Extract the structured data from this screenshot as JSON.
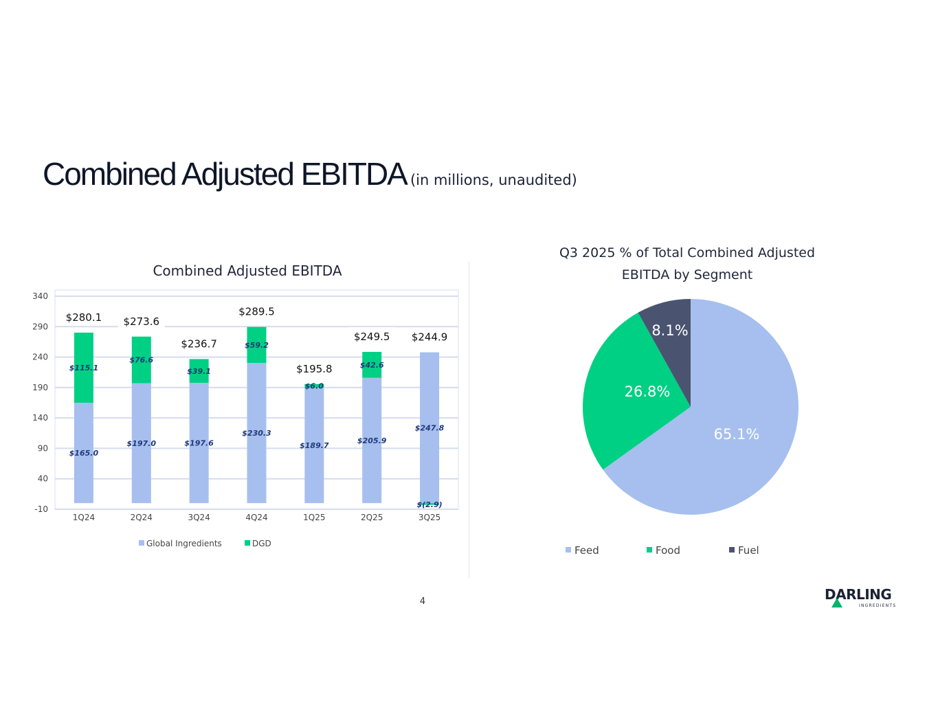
{
  "slide": {
    "title": "Combined Adjusted EBITDA",
    "subtitle": "(in millions, unaudited)",
    "page_number": "4",
    "logo_text": "DARLING INGREDIENTS"
  },
  "chart_data": [
    {
      "type": "bar",
      "stacked": true,
      "title": "Combined Adjusted EBITDA",
      "categories": [
        "1Q24",
        "2Q24",
        "3Q24",
        "4Q24",
        "1Q25",
        "2Q25",
        "3Q25"
      ],
      "series": [
        {
          "name": "Global Ingredients",
          "color": "#a6bfee",
          "values": [
            165.0,
            197.0,
            197.6,
            230.3,
            189.7,
            205.9,
            247.8
          ],
          "labels": [
            "$165.0",
            "$197.0",
            "$197.6",
            "$230.3",
            "$189.7",
            "$205.9",
            "$247.8"
          ]
        },
        {
          "name": "DGD",
          "color": "#00d084",
          "values": [
            115.1,
            76.6,
            39.1,
            59.2,
            6.0,
            42.6,
            -2.9
          ],
          "labels": [
            "$115.1",
            "$76.6",
            "$39.1",
            "$59.2",
            "$6.0",
            "$42.6",
            "$(2.9)"
          ]
        }
      ],
      "totals": [
        "$280.1",
        "$273.6",
        "$236.7",
        "$289.5",
        "$195.8",
        "$249.5",
        "$244.9"
      ],
      "yticks": [
        "340",
        "290",
        "240",
        "190",
        "140",
        "90",
        "40",
        "-10"
      ],
      "ylim": [
        -10,
        340
      ],
      "grid": true,
      "legend": "bottom"
    },
    {
      "type": "pie",
      "title": "Q3 2025 % of Total Combined Adjusted EBITDA by Segment",
      "title_lines": [
        "Q3 2025 % of Total Combined Adjusted",
        "EBITDA by Segment"
      ],
      "slices": [
        {
          "name": "Feed",
          "value": 65.1,
          "label": "65.1%",
          "color": "#a6bfee"
        },
        {
          "name": "Food",
          "value": 26.8,
          "label": "26.8%",
          "color": "#00d084"
        },
        {
          "name": "Fuel",
          "value": 8.1,
          "label": "8.1%",
          "color": "#4a5470"
        }
      ],
      "legend": "bottom"
    }
  ]
}
